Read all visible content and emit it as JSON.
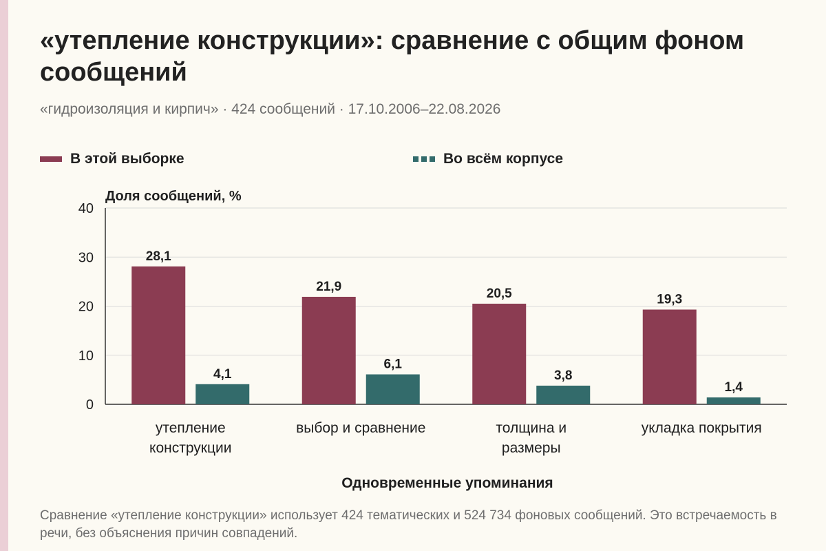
{
  "title": "«утепление конструкции»: сравнение с общим фоном сообщений",
  "subtitle": "«гидроизоляция и кирпич» · 424 сообщений · 17.10.2006–22.08.2026",
  "footnote": "Сравнение «утепление конструкции» использует 424 тематических и 524 734 фоновых сообщений. Это встречаемость в речи, без объяснения причин совпадений.",
  "colors": {
    "sample": "#8b3c52",
    "corpus": "#336b6b",
    "grid": "#d9d9d9",
    "axis": "#333333",
    "background": "#fcfaf3"
  },
  "chart_data": {
    "type": "bar",
    "title": "«утепление конструкции»: сравнение с общим фоном сообщений",
    "xlabel": "Одновременные упоминания",
    "ylabel": "Доля сообщений, %",
    "ylim": [
      0,
      40
    ],
    "yticks": [
      0,
      10,
      20,
      30,
      40
    ],
    "categories": [
      [
        "утепление",
        "конструкции"
      ],
      [
        "выбор и сравнение"
      ],
      [
        "толщина и",
        "размеры"
      ],
      [
        "укладка покрытия"
      ]
    ],
    "series": [
      {
        "name": "В этой выборке",
        "color": "#8b3c52",
        "values": [
          28.1,
          21.9,
          20.5,
          19.3
        ],
        "labels": [
          "28,1",
          "21,9",
          "20,5",
          "19,3"
        ]
      },
      {
        "name": "Во всём корпусе",
        "color": "#336b6b",
        "values": [
          4.1,
          6.1,
          3.8,
          1.4
        ],
        "labels": [
          "4,1",
          "6,1",
          "3,8",
          "1,4"
        ]
      }
    ],
    "legend_position": "top",
    "grid": true
  }
}
